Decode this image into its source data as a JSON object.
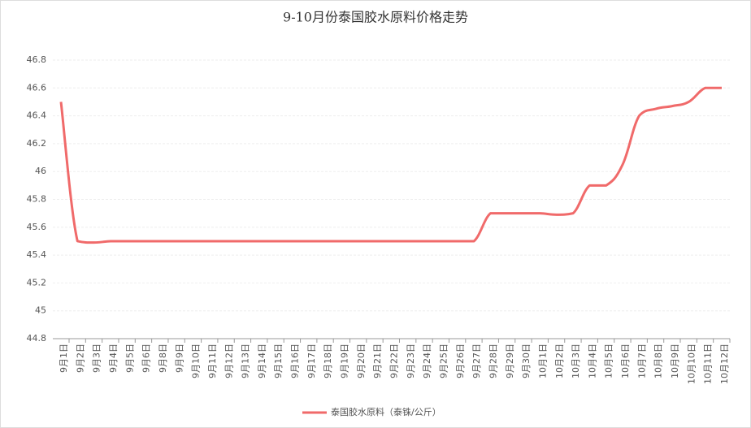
{
  "chart_data": {
    "type": "line",
    "title": "9-10月份泰国胶水原料价格走势",
    "categories": [
      "9月1日",
      "9月2日",
      "9月3日",
      "9月4日",
      "9月5日",
      "9月6日",
      "9月8日",
      "9月9日",
      "9月10日",
      "9月11日",
      "9月12日",
      "9月13日",
      "9月14日",
      "9月15日",
      "9月16日",
      "9月17日",
      "9月18日",
      "9月19日",
      "9月20日",
      "9月21日",
      "9月22日",
      "9月23日",
      "9月24日",
      "9月25日",
      "9月26日",
      "9月27日",
      "9月28日",
      "9月29日",
      "9月30日",
      "10月1日",
      "10月2日",
      "10月3日",
      "10月4日",
      "10月5日",
      "10月6日",
      "10月7日",
      "10月8日",
      "10月9日",
      "10月10日",
      "10月11日",
      "10月12日"
    ],
    "series": [
      {
        "name": "泰国胶水原料（泰铢/公斤）",
        "color": "#f06a6a",
        "values": [
          46.5,
          45.5,
          45.49,
          45.5,
          45.5,
          45.5,
          45.5,
          45.5,
          45.5,
          45.5,
          45.5,
          45.5,
          45.5,
          45.5,
          45.5,
          45.5,
          45.5,
          45.5,
          45.5,
          45.5,
          45.5,
          45.5,
          45.5,
          45.5,
          45.5,
          45.5,
          45.7,
          45.7,
          45.7,
          45.7,
          45.69,
          45.7,
          45.9,
          45.9,
          46.05,
          46.4,
          46.45,
          46.47,
          46.5,
          46.6,
          46.6
        ]
      }
    ],
    "ylim": [
      44.8,
      46.8
    ],
    "yticks": [
      44.8,
      45,
      45.2,
      45.4,
      45.6,
      45.8,
      46,
      46.2,
      46.4,
      46.6,
      46.8
    ],
    "grid": true,
    "legend": "bottom"
  }
}
